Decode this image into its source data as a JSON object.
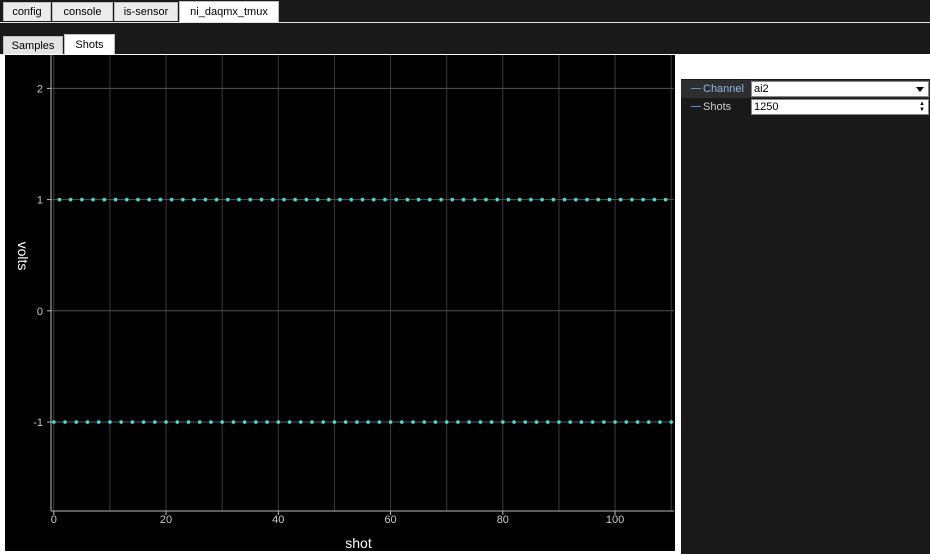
{
  "top_tabs": [
    {
      "label": "config",
      "active": false
    },
    {
      "label": "console",
      "active": false
    },
    {
      "label": "is-sensor",
      "active": false
    },
    {
      "label": "ni_daqmx_tmux",
      "active": true
    }
  ],
  "sub_tabs": [
    {
      "label": "Samples",
      "active": false
    },
    {
      "label": "Shots",
      "active": true
    }
  ],
  "properties": {
    "channel": {
      "label": "Channel",
      "value": "ai2"
    },
    "shots": {
      "label": "Shots",
      "value": "1250"
    }
  },
  "chart_data": {
    "type": "scatter",
    "xlabel": "shot",
    "ylabel": "volts",
    "xlim": [
      -0.5,
      110.5
    ],
    "ylim": [
      -1.8,
      2.3
    ],
    "xticks": [
      0,
      20,
      40,
      60,
      80,
      100
    ],
    "yticks": [
      -1,
      0,
      1,
      2
    ],
    "grid": true,
    "colors": {
      "background": "#000000",
      "marker": "#40e0e0",
      "grid": "#3c3c3c",
      "axis": "#bbbbbb"
    },
    "series": [
      {
        "x": [
          1,
          3,
          5,
          7,
          9,
          11,
          13,
          15,
          17,
          19,
          21,
          23,
          25,
          27,
          29,
          31,
          33,
          35,
          37,
          39,
          41,
          43,
          45,
          47,
          49,
          51,
          53,
          55,
          57,
          59,
          61,
          63,
          65,
          67,
          69,
          71,
          73,
          75,
          77,
          79,
          81,
          83,
          85,
          87,
          89,
          91,
          93,
          95,
          97,
          99,
          101,
          103,
          105,
          107,
          109
        ],
        "y": [
          1,
          1,
          1,
          1,
          1,
          1,
          1,
          1,
          1,
          1,
          1,
          1,
          1,
          1,
          1,
          1,
          1,
          1,
          1,
          1,
          1,
          1,
          1,
          1,
          1,
          1,
          1,
          1,
          1,
          1,
          1,
          1,
          1,
          1,
          1,
          1,
          1,
          1,
          1,
          1,
          1,
          1,
          1,
          1,
          1,
          1,
          1,
          1,
          1,
          1,
          1,
          1,
          1,
          1,
          1
        ]
      },
      {
        "x": [
          0,
          2,
          4,
          6,
          8,
          10,
          12,
          14,
          16,
          18,
          20,
          22,
          24,
          26,
          28,
          30,
          32,
          34,
          36,
          38,
          40,
          42,
          44,
          46,
          48,
          50,
          52,
          54,
          56,
          58,
          60,
          62,
          64,
          66,
          68,
          70,
          72,
          74,
          76,
          78,
          80,
          82,
          84,
          86,
          88,
          90,
          92,
          94,
          96,
          98,
          100,
          102,
          104,
          106,
          108,
          110
        ],
        "y": [
          -1,
          -1,
          -1,
          -1,
          -1,
          -1,
          -1,
          -1,
          -1,
          -1,
          -1,
          -1,
          -1,
          -1,
          -1,
          -1,
          -1,
          -1,
          -1,
          -1,
          -1,
          -1,
          -1,
          -1,
          -1,
          -1,
          -1,
          -1,
          -1,
          -1,
          -1,
          -1,
          -1,
          -1,
          -1,
          -1,
          -1,
          -1,
          -1,
          -1,
          -1,
          -1,
          -1,
          -1,
          -1,
          -1,
          -1,
          -1,
          -1,
          -1,
          -1,
          -1,
          -1,
          -1,
          -1,
          -1
        ]
      }
    ]
  }
}
